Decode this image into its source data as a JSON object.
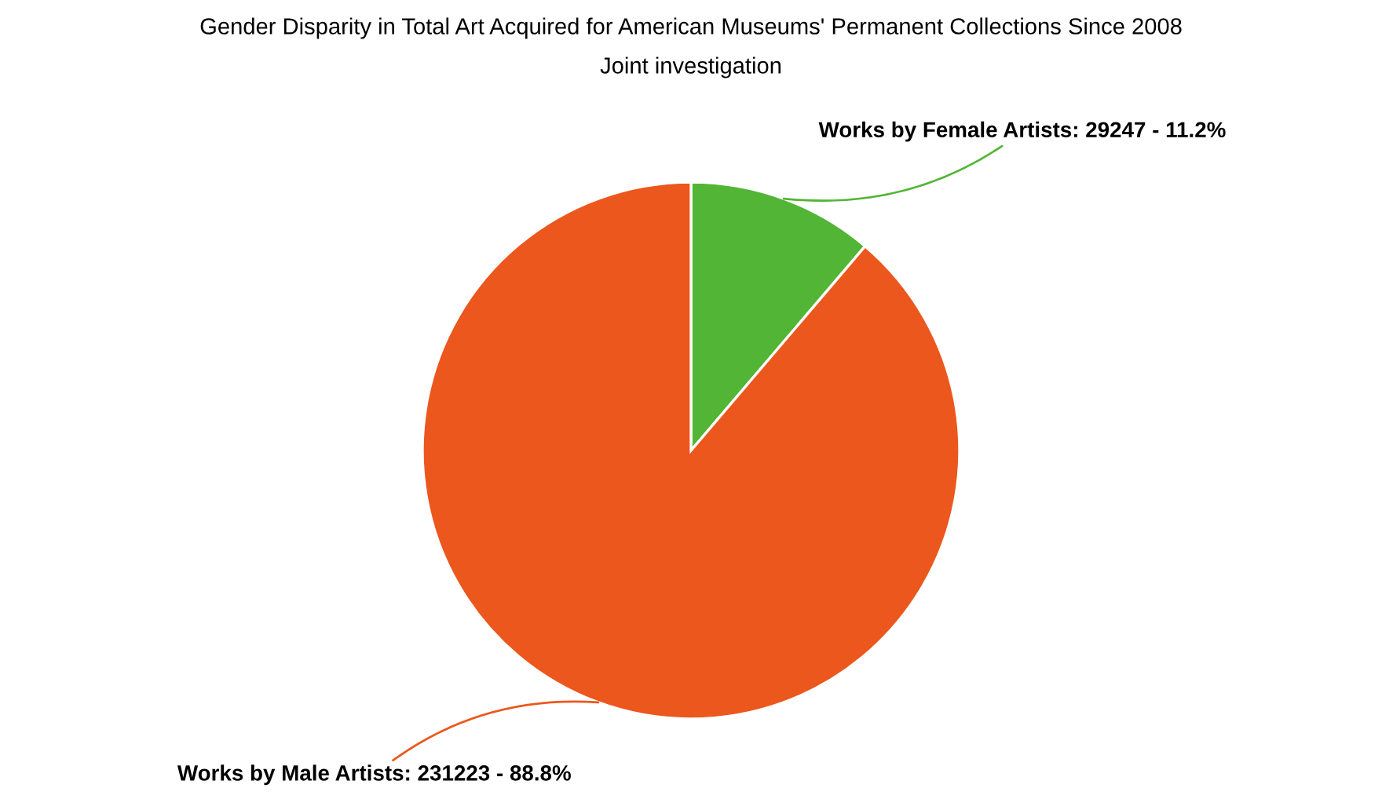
{
  "chart_data": {
    "type": "pie",
    "title": "Gender Disparity in Total Art Acquired for American Museums' Permanent Collections Since 2008",
    "subtitle": "Joint investigation",
    "categories": [
      "Works by Female Artists",
      "Works by Male Artists"
    ],
    "values": [
      29247,
      231223
    ],
    "value_labels": [
      "29247 - 11.2%",
      "231223 - 88.8%"
    ],
    "colors": [
      "#52b535",
      "#ec571d"
    ]
  }
}
